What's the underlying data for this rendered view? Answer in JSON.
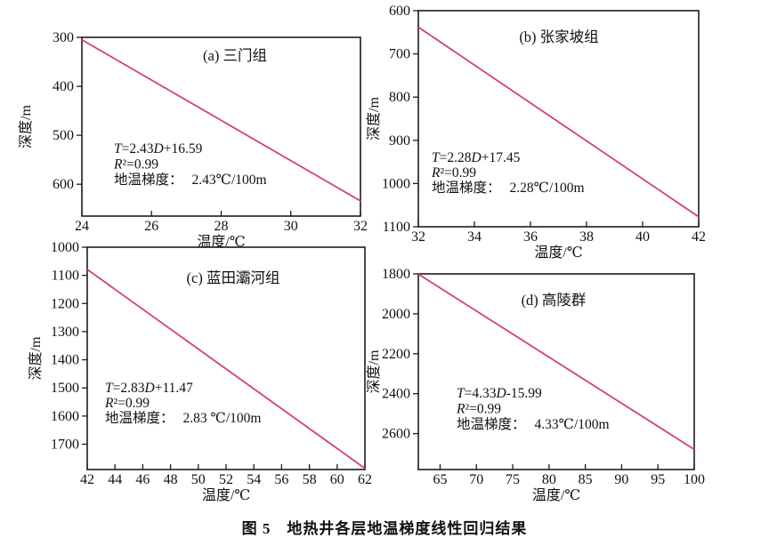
{
  "figure": {
    "caption": "图 5　地热井各层地温梯度线性回归结果",
    "line_color": "#d4406f",
    "axis_color": "#1c1c1c"
  },
  "chart_data": [
    {
      "type": "line",
      "panel": "a",
      "title": "(a) 三门组",
      "xlabel": "温度/℃",
      "ylabel": "深度/m",
      "xlim": [
        24,
        32
      ],
      "xticks": [
        24,
        26,
        28,
        30,
        32
      ],
      "depth_range_top_to_bottom": [
        300,
        665
      ],
      "yticks": [
        300,
        400,
        500,
        600
      ],
      "y_axis": "reversed (depth increases downward)",
      "grid": false,
      "legend": false,
      "regression": {
        "x": [
          24,
          32
        ],
        "depth": [
          305,
          634
        ]
      },
      "equation": "T=2.43D+16.59",
      "r2": "R²=0.99",
      "gradient_label": "地温梯度：",
      "gradient_value": "2.43℃/100m"
    },
    {
      "type": "line",
      "panel": "b",
      "title": "(b) 张家坡组",
      "xlabel": "温度/℃",
      "ylabel": "深度/m",
      "xlim": [
        32,
        42
      ],
      "xticks": [
        32,
        34,
        36,
        38,
        40,
        42
      ],
      "depth_range_top_to_bottom": [
        600,
        1100
      ],
      "yticks": [
        600,
        700,
        800,
        900,
        1000,
        1100
      ],
      "y_axis": "reversed (depth increases downward)",
      "grid": false,
      "legend": false,
      "regression": {
        "x": [
          32,
          42
        ],
        "depth": [
          638,
          1077
        ]
      },
      "equation": "T=2.28D+17.45",
      "r2": "R²=0.99",
      "gradient_label": "地温梯度：",
      "gradient_value": "2.28℃/100m"
    },
    {
      "type": "line",
      "panel": "c",
      "title": "(c) 蓝田灞河组",
      "xlabel": "温度/℃",
      "ylabel": "深度/m",
      "xlim": [
        42,
        62
      ],
      "xticks": [
        42,
        44,
        46,
        48,
        50,
        52,
        54,
        56,
        58,
        60,
        62
      ],
      "depth_range_top_to_bottom": [
        1000,
        1790
      ],
      "yticks": [
        1000,
        1100,
        1200,
        1300,
        1400,
        1500,
        1600,
        1700
      ],
      "y_axis": "reversed (depth increases downward)",
      "grid": false,
      "legend": false,
      "regression": {
        "x": [
          42,
          62
        ],
        "depth": [
          1079,
          1786
        ]
      },
      "equation": "T=2.83D+11.47",
      "r2": "R²=0.99",
      "gradient_label": "地温梯度：",
      "gradient_value": "2.83 ℃/100m"
    },
    {
      "type": "line",
      "panel": "d",
      "title": "(d) 高陵群",
      "xlabel": "温度/℃",
      "ylabel": "深度/m",
      "xlim": [
        62,
        100
      ],
      "xticks": [
        65,
        70,
        75,
        80,
        85,
        90,
        95,
        100
      ],
      "depth_range_top_to_bottom": [
        1800,
        2780
      ],
      "yticks": [
        1800,
        2000,
        2200,
        2400,
        2600
      ],
      "y_axis": "reversed (depth increases downward)",
      "grid": false,
      "legend": false,
      "regression": {
        "x": [
          62,
          100
        ],
        "depth": [
          1801,
          2679
        ]
      },
      "equation": "T=4.33D-15.99",
      "r2": "R²=0.99",
      "gradient_label": "地温梯度：",
      "gradient_value": "4.33℃/100m"
    }
  ]
}
